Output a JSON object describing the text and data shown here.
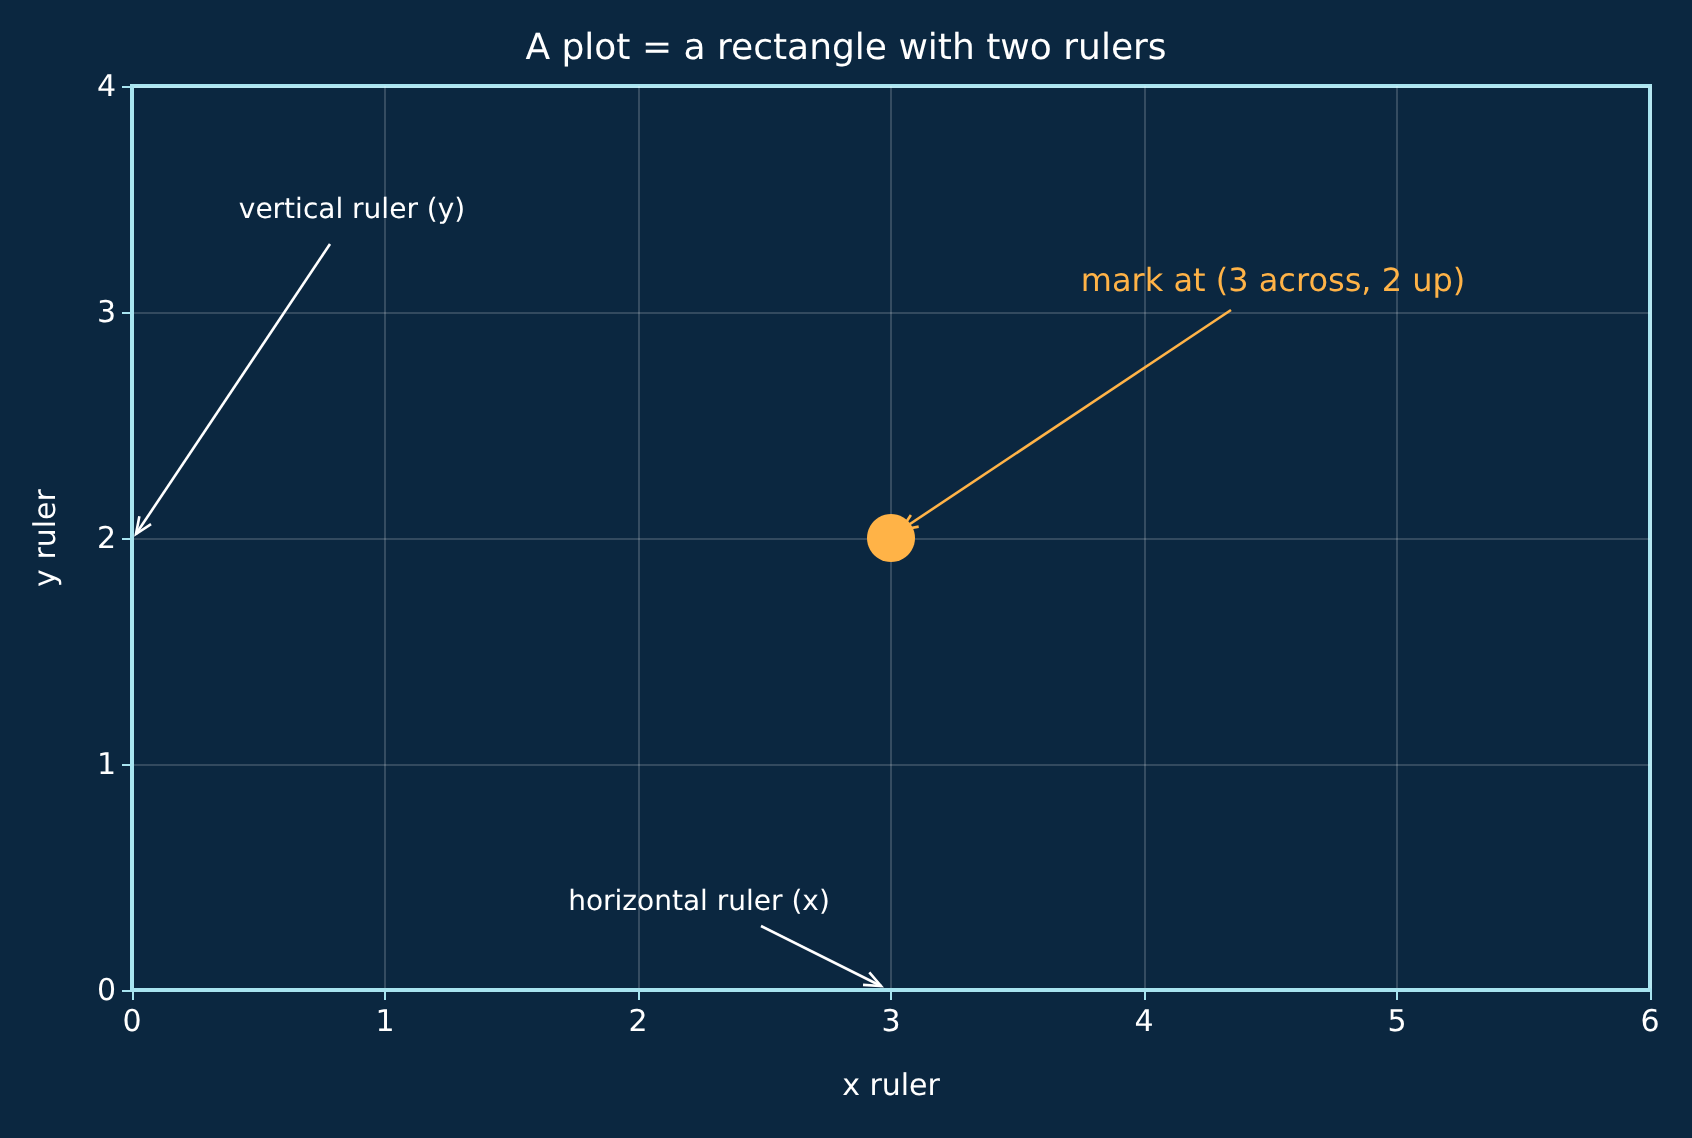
{
  "chart_data": {
    "type": "scatter",
    "title": "A plot = a rectangle with two rulers",
    "xlabel": "x ruler",
    "ylabel": "y ruler",
    "x": [
      3
    ],
    "values": [
      2
    ],
    "color": "#ffb347",
    "marker": "circle",
    "xlim": [
      0,
      6
    ],
    "xticks": [
      0,
      1,
      2,
      3,
      4,
      5,
      6
    ],
    "ylim": [
      0,
      4
    ],
    "yticks": [
      0,
      1,
      2,
      3,
      4
    ],
    "grid": true,
    "annotations": [
      "vertical ruler (y)",
      {
        "text": "mark at (3 across, 2 up)",
        "x": 3,
        "y": 2
      },
      "horizontal ruler (x)"
    ]
  }
}
